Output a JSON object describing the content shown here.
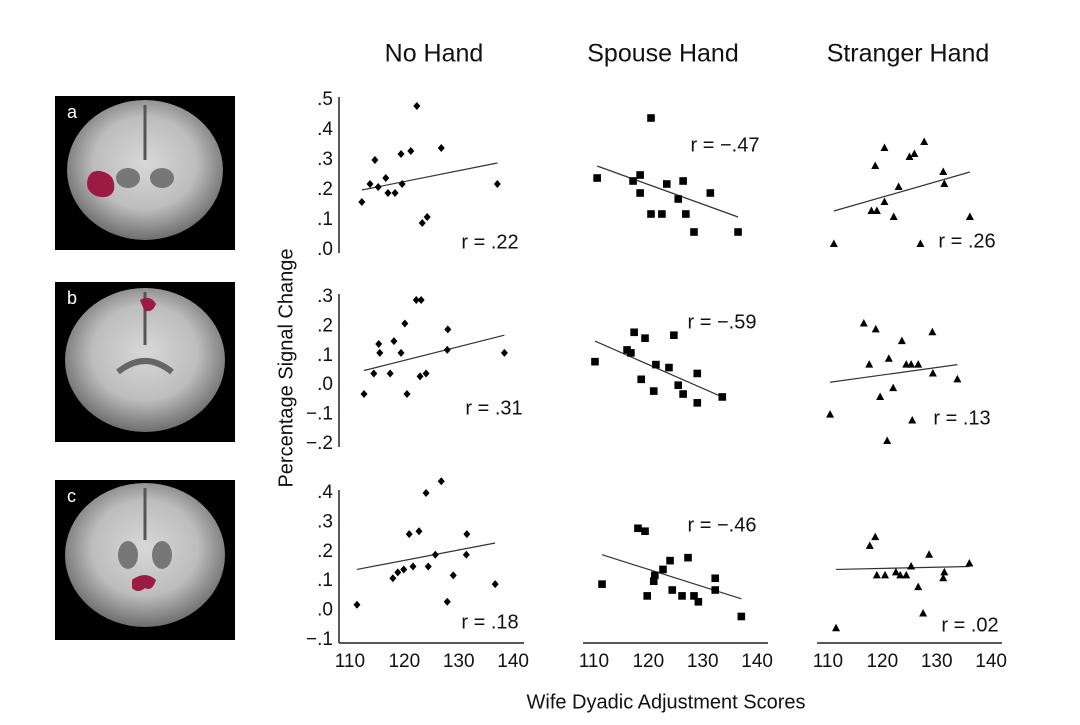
{
  "figure": {
    "ylabel": "Percentage Signal Change",
    "xlabel": "Wife Dyadic Adjustment Scores",
    "panel_labels": [
      "a",
      "b",
      "c"
    ]
  },
  "chart_data": [
    {
      "type": "scatter",
      "title": "No Hand",
      "marker": "diamond",
      "color": "#000000",
      "annotation": "r = .22",
      "x": [
        112.2,
        114.6,
        116.6,
        113.7,
        115.2,
        117.0,
        118.3,
        119.6,
        119.4,
        121.2,
        122.3,
        123.3,
        124.2,
        126.8,
        137.1
      ],
      "values": [
        0.16,
        0.3,
        0.24,
        0.22,
        0.21,
        0.19,
        0.19,
        0.22,
        0.32,
        0.33,
        0.48,
        0.09,
        0.11,
        0.34,
        0.22
      ],
      "trend": {
        "x": [
          112.2,
          137.1
        ],
        "y": [
          0.2,
          0.29
        ]
      },
      "xlim": [
        108,
        142
      ],
      "ylim": [
        0,
        0.5
      ],
      "yticks": [
        {
          "value": 0,
          "label": ".0"
        },
        {
          "value": 0.1,
          "label": ".1"
        },
        {
          "value": 0.2,
          "label": ".2"
        },
        {
          "value": 0.3,
          "label": ".3"
        },
        {
          "value": 0.4,
          "label": ".4"
        },
        {
          "value": 0.5,
          "label": ".5"
        }
      ]
    },
    {
      "type": "scatter",
      "title": "Spouse Hand",
      "marker": "square",
      "color": "#000000",
      "annotation": "r = −.47",
      "x": [
        110.6,
        117.2,
        118.5,
        120.5,
        118.5,
        120.5,
        122.5,
        123.4,
        125.5,
        126.4,
        126.9,
        128.4,
        131.4,
        136.5
      ],
      "values": [
        0.24,
        0.23,
        0.25,
        0.44,
        0.19,
        0.12,
        0.12,
        0.22,
        0.17,
        0.23,
        0.12,
        0.06,
        0.19,
        0.06
      ],
      "trend": {
        "x": [
          110.6,
          136.5
        ],
        "y": [
          0.28,
          0.11
        ]
      },
      "xlim": [
        108,
        142
      ],
      "ylim": [
        0,
        0.5
      ]
    },
    {
      "type": "scatter",
      "title": "Stranger Hand",
      "marker": "triangle",
      "color": "#000000",
      "annotation": "r = .26",
      "x": [
        111.1,
        118.7,
        120.4,
        118.0,
        119.0,
        120.4,
        123.0,
        122.1,
        125.0,
        125.9,
        127.7,
        127.0,
        131.2,
        131.4,
        136.1
      ],
      "values": [
        0.02,
        0.28,
        0.34,
        0.13,
        0.13,
        0.16,
        0.21,
        0.11,
        0.31,
        0.32,
        0.36,
        0.02,
        0.26,
        0.22,
        0.11
      ],
      "trend": {
        "x": [
          111.1,
          136.1
        ],
        "y": [
          0.13,
          0.26
        ]
      },
      "xlim": [
        108,
        142
      ],
      "ylim": [
        0,
        0.5
      ]
    },
    {
      "type": "scatter",
      "marker": "diamond",
      "color": "#000000",
      "annotation": "r = .31",
      "x": [
        112.6,
        114.4,
        115.3,
        115.5,
        117.4,
        118.1,
        119.4,
        120.5,
        120.1,
        122.2,
        123.1,
        122.9,
        124.0,
        128.0,
        127.9,
        138.4
      ],
      "values": [
        -0.03,
        0.04,
        0.14,
        0.11,
        0.04,
        0.15,
        0.11,
        -0.03,
        0.21,
        0.29,
        0.29,
        0.03,
        0.04,
        0.19,
        0.12,
        0.11
      ],
      "trend": {
        "x": [
          112.6,
          138.4
        ],
        "y": [
          0.05,
          0.17
        ]
      },
      "xlim": [
        108,
        142
      ],
      "ylim": [
        -0.2,
        0.3
      ],
      "yticks": [
        {
          "value": -0.2,
          "label": "−.2"
        },
        {
          "value": -0.1,
          "label": "−.1"
        },
        {
          "value": 0,
          "label": ".0"
        },
        {
          "value": 0.1,
          "label": ".1"
        },
        {
          "value": 0.2,
          "label": ".2"
        },
        {
          "value": 0.3,
          "label": ".3"
        }
      ]
    },
    {
      "type": "scatter",
      "marker": "square",
      "color": "#000000",
      "annotation": "r = −.59",
      "x": [
        110.2,
        116.1,
        117.4,
        119.4,
        116.8,
        118.7,
        121.0,
        121.4,
        123.8,
        124.7,
        125.5,
        126.4,
        129.0,
        129.0,
        133.6
      ],
      "values": [
        0.08,
        0.12,
        0.18,
        0.16,
        0.11,
        0.02,
        -0.02,
        0.07,
        0.06,
        0.17,
        0.0,
        -0.03,
        -0.06,
        0.04,
        -0.04
      ],
      "trend": {
        "x": [
          110.2,
          133.6
        ],
        "y": [
          0.15,
          -0.04
        ]
      },
      "xlim": [
        108,
        142
      ],
      "ylim": [
        -0.2,
        0.3
      ]
    },
    {
      "type": "scatter",
      "marker": "triangle",
      "color": "#000000",
      "annotation": "r = .13",
      "x": [
        110.4,
        116.6,
        118.8,
        117.6,
        119.6,
        121.2,
        123.6,
        124.4,
        125.3,
        126.6,
        122.0,
        120.9,
        125.5,
        129.2,
        129.3,
        133.8
      ],
      "values": [
        -0.1,
        0.21,
        0.19,
        0.07,
        -0.04,
        0.09,
        0.15,
        0.07,
        0.07,
        0.07,
        -0.01,
        -0.19,
        -0.12,
        0.18,
        0.04,
        0.02
      ],
      "trend": {
        "x": [
          110.4,
          133.8
        ],
        "y": [
          0.01,
          0.07
        ]
      },
      "xlim": [
        108,
        142
      ],
      "ylim": [
        -0.2,
        0.3
      ]
    },
    {
      "type": "scatter",
      "marker": "diamond",
      "color": "#000000",
      "annotation": "r = .18",
      "x": [
        111.3,
        117.9,
        118.8,
        119.9,
        120.9,
        121.6,
        122.7,
        124.0,
        124.4,
        125.7,
        126.8,
        127.9,
        129.0,
        131.5,
        131.4,
        136.7
      ],
      "values": [
        0.02,
        0.11,
        0.13,
        0.14,
        0.26,
        0.15,
        0.27,
        0.4,
        0.15,
        0.19,
        0.44,
        0.03,
        0.12,
        0.26,
        0.19,
        0.09
      ],
      "trend": {
        "x": [
          111.3,
          136.7
        ],
        "y": [
          0.14,
          0.23
        ]
      },
      "xlim": [
        108,
        142
      ],
      "ylim": [
        -0.1,
        0.4
      ],
      "yticks": [
        {
          "value": -0.1,
          "label": "−.1"
        },
        {
          "value": 0,
          "label": ".0"
        },
        {
          "value": 0.1,
          "label": ".1"
        },
        {
          "value": 0.2,
          "label": ".2"
        },
        {
          "value": 0.3,
          "label": ".3"
        },
        {
          "value": 0.4,
          "label": ".4"
        }
      ],
      "xticks": [
        110,
        120,
        130,
        140
      ]
    },
    {
      "type": "scatter",
      "marker": "square",
      "color": "#000000",
      "annotation": "r = −.46",
      "x": [
        111.5,
        118.1,
        119.4,
        119.8,
        121.0,
        121.2,
        122.7,
        124.0,
        124.4,
        126.2,
        127.3,
        128.4,
        129.2,
        132.3,
        132.3,
        137.1
      ],
      "values": [
        0.09,
        0.28,
        0.27,
        0.05,
        0.1,
        0.12,
        0.14,
        0.17,
        0.07,
        0.05,
        0.18,
        0.05,
        0.03,
        0.11,
        0.07,
        -0.02
      ],
      "trend": {
        "x": [
          111.5,
          137.1
        ],
        "y": [
          0.19,
          0.04
        ]
      },
      "xlim": [
        108,
        142
      ],
      "ylim": [
        -0.1,
        0.4
      ],
      "xticks": [
        110,
        120,
        130,
        140
      ]
    },
    {
      "type": "scatter",
      "marker": "triangle",
      "color": "#000000",
      "annotation": "r = .02",
      "x": [
        111.5,
        117.7,
        118.7,
        119.0,
        120.5,
        122.5,
        123.3,
        124.4,
        125.3,
        126.6,
        127.5,
        128.6,
        131.2,
        131.4,
        136.0
      ],
      "values": [
        -0.06,
        0.22,
        0.25,
        0.12,
        0.12,
        0.13,
        0.12,
        0.12,
        0.15,
        0.08,
        -0.01,
        0.19,
        0.11,
        0.13,
        0.16
      ],
      "trend": {
        "x": [
          111.5,
          136.0
        ],
        "y": [
          0.14,
          0.15
        ]
      },
      "xlim": [
        108,
        142
      ],
      "ylim": [
        -0.1,
        0.4
      ],
      "xticks": [
        110,
        120,
        130,
        140
      ]
    }
  ]
}
